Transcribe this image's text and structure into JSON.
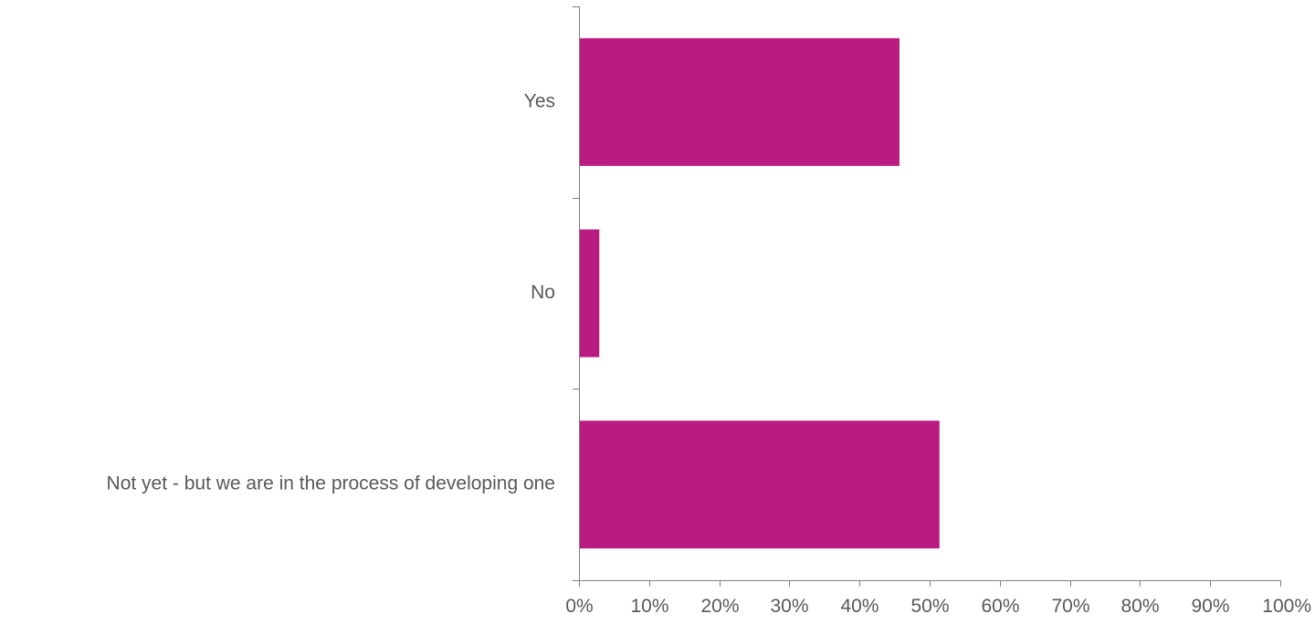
{
  "chart_data": {
    "type": "bar",
    "orientation": "horizontal",
    "categories": [
      "Yes",
      "No",
      "Not yet - but we are in the process of developing one"
    ],
    "values": [
      45.7,
      2.9,
      51.4
    ],
    "xlim": [
      0,
      100
    ],
    "x_ticks": [
      "0%",
      "10%",
      "20%",
      "30%",
      "40%",
      "50%",
      "60%",
      "70%",
      "80%",
      "90%",
      "100%"
    ],
    "value_unit": "%",
    "bar_color": "#B91B81",
    "grid": false,
    "legend": "none"
  }
}
